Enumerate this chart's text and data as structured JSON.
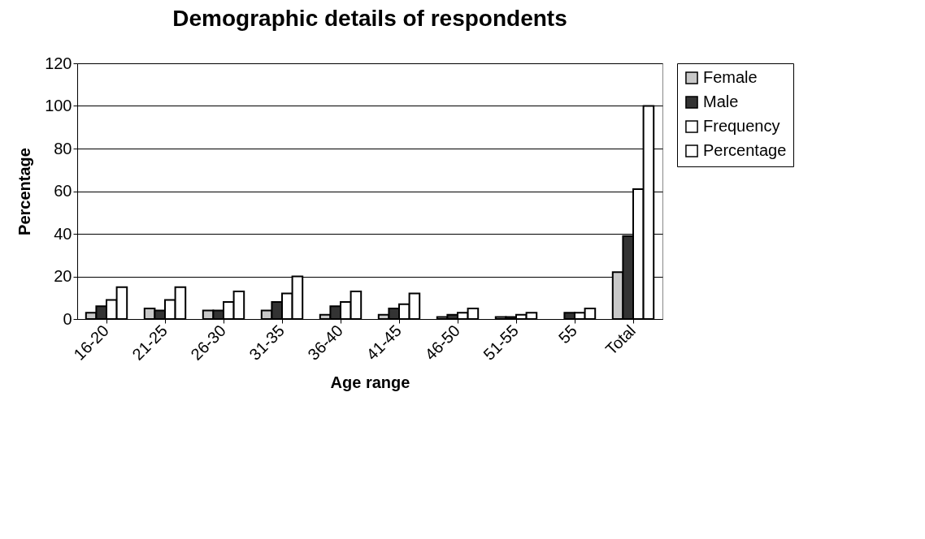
{
  "chart_data": {
    "type": "bar",
    "title": "Demographic details of respondents",
    "xlabel": "Age range",
    "ylabel": "Percentage",
    "categories": [
      "16-20",
      "21-25",
      "26-30",
      "31-35",
      "36-40",
      "41-45",
      "46-50",
      "51-55",
      "55",
      "Total"
    ],
    "series": [
      {
        "name": "Female",
        "color": "#c8c8c8",
        "values": [
          3,
          5,
          4,
          4,
          2,
          2,
          1,
          1,
          null,
          22
        ]
      },
      {
        "name": "Male",
        "color": "#333333",
        "values": [
          6,
          4,
          4,
          8,
          6,
          5,
          2,
          1,
          3,
          39
        ]
      },
      {
        "name": "Frequency",
        "color": "#ffffff",
        "values": [
          9,
          9,
          8,
          12,
          8,
          7,
          3,
          2,
          3,
          61
        ]
      },
      {
        "name": "Percentage",
        "color": "#ffffff",
        "values": [
          15,
          15,
          13,
          20,
          13,
          12,
          5,
          3,
          5,
          100
        ]
      }
    ],
    "ylim": [
      0,
      120
    ],
    "yticks": [
      0,
      20,
      40,
      60,
      80,
      100,
      120
    ],
    "grid": "y",
    "legend": "right"
  }
}
